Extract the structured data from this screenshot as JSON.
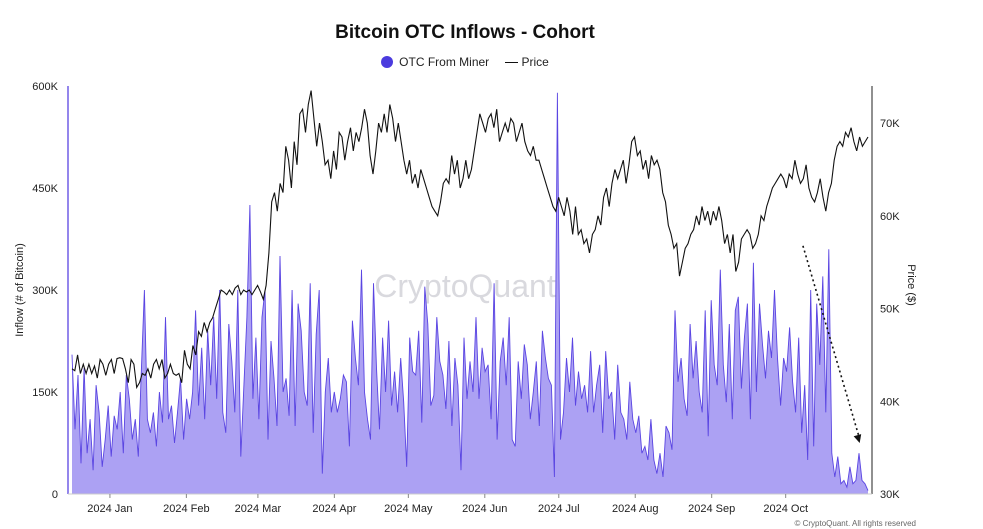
{
  "chart_data": {
    "type": "area",
    "title": "Bitcoin OTC Inflows - Cohort",
    "legend": {
      "placement": "top-center"
    },
    "colors": {
      "area_fill": "#a89cf2",
      "area_stroke": "#5a45e2",
      "price_line": "#111111",
      "arrow": "#111111",
      "legend_dot": "#4b3bde"
    },
    "series": [
      {
        "name": "OTC From Miner",
        "axis": "left",
        "values": [
          205000,
          95000,
          175000,
          45000,
          185000,
          60000,
          110000,
          35000,
          160000,
          120000,
          40000,
          80000,
          130000,
          55000,
          115000,
          95000,
          150000,
          60000,
          175000,
          140000,
          80000,
          110000,
          55000,
          180000,
          300000,
          110000,
          90000,
          120000,
          70000,
          150000,
          105000,
          260000,
          110000,
          130000,
          75000,
          120000,
          170000,
          80000,
          140000,
          110000,
          150000,
          270000,
          130000,
          215000,
          110000,
          240000,
          160000,
          260000,
          140000,
          300000,
          120000,
          90000,
          250000,
          195000,
          120000,
          300000,
          55000,
          160000,
          260000,
          425000,
          140000,
          230000,
          110000,
          260000,
          300000,
          80000,
          225000,
          170000,
          100000,
          350000,
          150000,
          170000,
          115000,
          300000,
          100000,
          280000,
          240000,
          150000,
          130000,
          310000,
          90000,
          235000,
          300000,
          30000,
          150000,
          200000,
          120000,
          150000,
          120000,
          140000,
          175000,
          165000,
          70000,
          255000,
          200000,
          160000,
          330000,
          150000,
          110000,
          80000,
          310000,
          185000,
          95000,
          230000,
          150000,
          255000,
          130000,
          180000,
          120000,
          200000,
          135000,
          40000,
          230000,
          180000,
          175000,
          240000,
          105000,
          305000,
          250000,
          130000,
          145000,
          260000,
          195000,
          175000,
          125000,
          225000,
          100000,
          200000,
          160000,
          35000,
          230000,
          140000,
          195000,
          150000,
          260000,
          140000,
          215000,
          180000,
          190000,
          110000,
          310000,
          80000,
          195000,
          230000,
          160000,
          260000,
          80000,
          70000,
          195000,
          140000,
          220000,
          190000,
          110000,
          150000,
          195000,
          100000,
          240000,
          200000,
          170000,
          160000,
          25000,
          590000,
          80000,
          120000,
          200000,
          150000,
          230000,
          130000,
          180000,
          140000,
          160000,
          120000,
          210000,
          120000,
          160000,
          190000,
          90000,
          210000,
          140000,
          150000,
          80000,
          190000,
          120000,
          110000,
          80000,
          165000,
          110000,
          90000,
          115000,
          60000,
          70000,
          50000,
          110000,
          50000,
          30000,
          60000,
          25000,
          100000,
          90000,
          65000,
          270000,
          165000,
          200000,
          140000,
          115000,
          250000,
          170000,
          225000,
          150000,
          120000,
          270000,
          85000,
          285000,
          190000,
          160000,
          330000,
          190000,
          135000,
          250000,
          110000,
          270000,
          290000,
          155000,
          230000,
          280000,
          110000,
          340000,
          150000,
          280000,
          220000,
          170000,
          240000,
          200000,
          300000,
          200000,
          130000,
          200000,
          180000,
          245000,
          165000,
          120000,
          230000,
          90000,
          160000,
          50000,
          300000,
          70000,
          280000,
          190000,
          320000,
          120000,
          360000,
          60000,
          25000,
          55000,
          15000,
          20000,
          10000,
          40000,
          15000,
          20000,
          60000,
          20000,
          15000,
          5000
        ],
        "ylim": [
          0,
          600000
        ]
      },
      {
        "name": "Price",
        "axis": "right",
        "values": [
          43500,
          43300,
          45000,
          43000,
          44000,
          43000,
          44000,
          43000,
          43800,
          42500,
          44500,
          44000,
          42800,
          44000,
          44500,
          43000,
          44600,
          44700,
          44600,
          43500,
          42000,
          44500,
          44000,
          41500,
          42000,
          43000,
          42800,
          43500,
          42500,
          44000,
          44500,
          43500,
          44500,
          42500,
          43000,
          44000,
          43000,
          42800,
          43000,
          42000,
          45500,
          44000,
          43500,
          46000,
          45000,
          47500,
          47000,
          48500,
          47500,
          48500,
          49000,
          50000,
          51000,
          52000,
          51800,
          51500,
          52000,
          51500,
          52200,
          52500,
          51500,
          52000,
          51800,
          52000,
          51500,
          52000,
          52500,
          51800,
          51000,
          52500,
          56000,
          61500,
          62500,
          60500,
          63500,
          62500,
          67500,
          66000,
          63000,
          68000,
          65500,
          71000,
          71500,
          69000,
          72000,
          73500,
          70500,
          67500,
          70000,
          68000,
          65500,
          66000,
          64000,
          67000,
          65000,
          69000,
          68500,
          66000,
          68000,
          69500,
          67000,
          69000,
          68000,
          69500,
          71500,
          70000,
          66500,
          64500,
          67000,
          70000,
          69000,
          71000,
          69000,
          72000,
          70500,
          68000,
          70000,
          68000,
          66000,
          64500,
          66000,
          63500,
          64500,
          63000,
          65000,
          64000,
          63000,
          62000,
          61000,
          60500,
          60000,
          61500,
          63500,
          64000,
          63500,
          66500,
          64500,
          66000,
          63000,
          64000,
          66000,
          64000,
          65000,
          67000,
          69000,
          71000,
          70000,
          69000,
          70500,
          71000,
          69500,
          71500,
          68000,
          69000,
          70000,
          69000,
          70500,
          70000,
          68000,
          69000,
          70000,
          68000,
          67000,
          66500,
          67500,
          66000,
          66000,
          65000,
          64000,
          63000,
          62000,
          61000,
          60500,
          62000,
          61000,
          60000,
          62000,
          60500,
          58000,
          61000,
          58000,
          58500,
          57000,
          57500,
          56000,
          58000,
          58500,
          60000,
          59000,
          62000,
          63000,
          61000,
          63500,
          65000,
          64000,
          65000,
          66000,
          63500,
          65500,
          68000,
          68500,
          66500,
          67000,
          65000,
          66000,
          64000,
          66500,
          65500,
          66000,
          65000,
          62500,
          61500,
          59000,
          58000,
          56500,
          57000,
          53500,
          55000,
          56500,
          57000,
          58000,
          58500,
          60000,
          59000,
          61000,
          59500,
          60500,
          59000,
          60500,
          59500,
          61000,
          59500,
          57000,
          58000,
          56000,
          58000,
          54000,
          55000,
          57500,
          58000,
          58500,
          58000,
          56500,
          57000,
          58000,
          60000,
          59500,
          61000,
          62000,
          63000,
          63500,
          64000,
          64500,
          64000,
          63000,
          64500,
          64000,
          66000,
          64500,
          63500,
          64000,
          65500,
          63000,
          62000,
          61500,
          62500,
          64000,
          62000,
          60500,
          62500,
          63500,
          66000,
          67500,
          68000,
          67500,
          69000,
          68500,
          69500,
          68000,
          67000,
          68500,
          67500,
          68000,
          68500
        ],
        "ylim": [
          30000,
          74000
        ]
      }
    ],
    "x_range": [
      "2023-12-15",
      "2024-11-05"
    ],
    "x_ticks": [
      {
        "label": "2024 Jan",
        "date": "2024-01-01"
      },
      {
        "label": "2024 Feb",
        "date": "2024-02-01"
      },
      {
        "label": "2024 Mar",
        "date": "2024-03-01"
      },
      {
        "label": "2024 Apr",
        "date": "2024-04-01"
      },
      {
        "label": "2024 May",
        "date": "2024-05-01"
      },
      {
        "label": "2024 Jun",
        "date": "2024-06-01"
      },
      {
        "label": "2024 Jul",
        "date": "2024-07-01"
      },
      {
        "label": "2024 Aug",
        "date": "2024-08-01"
      },
      {
        "label": "2024 Sep",
        "date": "2024-09-01"
      },
      {
        "label": "2024 Oct",
        "date": "2024-10-01"
      }
    ],
    "y_left": {
      "label": "Inflow (# of Bitcoin)",
      "ylim": [
        0,
        600000
      ],
      "ticks": [
        {
          "value": 0,
          "label": "0"
        },
        {
          "value": 150000,
          "label": "150K"
        },
        {
          "value": 300000,
          "label": "300K"
        },
        {
          "value": 450000,
          "label": "450K"
        },
        {
          "value": 600000,
          "label": "600K"
        }
      ]
    },
    "y_right": {
      "label": "Price ($)",
      "ylim": [
        30000,
        74000
      ],
      "ticks": [
        {
          "value": 30000,
          "label": "30K"
        },
        {
          "value": 40000,
          "label": "40K"
        },
        {
          "value": 50000,
          "label": "50K"
        },
        {
          "value": 60000,
          "label": "60K"
        },
        {
          "value": 70000,
          "label": "70K"
        }
      ]
    },
    "annotation": {
      "type": "dotted-arrow",
      "from": {
        "date": "2024-10-08",
        "y": 365000
      },
      "to": {
        "date": "2024-10-31",
        "y": 75000
      }
    },
    "watermark": "CryptoQuant",
    "grid": false
  },
  "footer": {
    "copyright": "© CryptoQuant. All rights reserved"
  }
}
